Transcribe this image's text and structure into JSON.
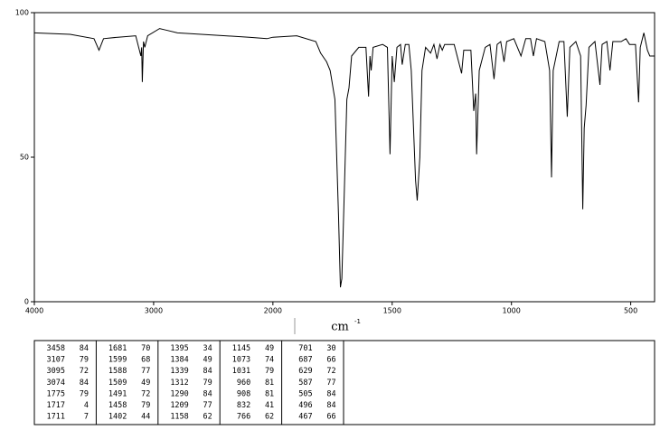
{
  "chart_data": {
    "type": "line",
    "xlabel": "cm",
    "xlabel_sup": "-1",
    "xlim": [
      4000,
      400
    ],
    "xticks": [
      4000,
      3000,
      2000,
      1500,
      1000,
      500
    ],
    "xscale_break": 2000,
    "xscale_break_factor": 2,
    "ylim": [
      0,
      100
    ],
    "yticks": [
      0,
      50,
      100
    ],
    "series": [
      {
        "color": "#000000",
        "x": [
          4000,
          3700,
          3500,
          3458,
          3420,
          3300,
          3150,
          3107,
          3100,
          3095,
          3085,
          3074,
          3050,
          2950,
          2900,
          2800,
          2600,
          2400,
          2200,
          2050,
          2000,
          1900,
          1820,
          1800,
          1775,
          1760,
          1740,
          1725,
          1717,
          1711,
          1700,
          1690,
          1681,
          1670,
          1640,
          1610,
          1599,
          1593,
          1588,
          1580,
          1540,
          1520,
          1509,
          1500,
          1491,
          1480,
          1465,
          1458,
          1445,
          1430,
          1420,
          1402,
          1395,
          1384,
          1375,
          1360,
          1339,
          1325,
          1312,
          1300,
          1290,
          1280,
          1240,
          1209,
          1200,
          1170,
          1158,
          1150,
          1146,
          1135,
          1110,
          1090,
          1073,
          1060,
          1045,
          1031,
          1020,
          990,
          960,
          940,
          920,
          908,
          895,
          860,
          840,
          832,
          825,
          800,
          780,
          766,
          755,
          730,
          710,
          701,
          695,
          687,
          675,
          650,
          629,
          620,
          600,
          587,
          575,
          540,
          520,
          505,
          496,
          480,
          467,
          460,
          445,
          430,
          420,
          400
        ],
        "values": [
          93,
          92.5,
          91,
          87,
          91,
          91.5,
          92,
          85,
          88,
          76,
          90,
          88,
          92,
          94.5,
          94,
          93,
          92.5,
          92,
          91.5,
          91,
          91.5,
          92,
          90,
          86,
          83,
          80,
          70,
          30,
          5,
          8,
          40,
          70,
          74,
          85,
          88,
          88,
          71,
          85,
          80,
          88,
          89,
          88,
          51,
          85,
          76,
          88,
          89,
          82,
          89,
          89,
          80,
          42,
          35,
          50,
          80,
          88,
          86,
          89,
          84,
          89,
          87,
          89,
          89,
          79,
          87,
          87,
          66,
          72,
          51,
          80,
          88,
          89,
          77,
          89,
          90,
          83,
          90,
          91,
          85,
          91,
          91,
          85,
          91,
          90,
          80,
          43,
          80,
          90,
          90,
          64,
          88,
          90,
          85,
          32,
          60,
          68,
          88,
          90,
          75,
          89,
          90,
          80,
          90,
          90,
          91,
          89,
          89,
          89,
          69,
          88,
          93,
          87,
          85,
          85
        ]
      }
    ]
  },
  "table": {
    "rows": [
      [
        3458,
        84,
        1681,
        70,
        1395,
        34,
        1145,
        49,
        701,
        30
      ],
      [
        3107,
        79,
        1599,
        68,
        1384,
        49,
        1073,
        74,
        687,
        66
      ],
      [
        3095,
        72,
        1588,
        77,
        1339,
        84,
        1031,
        79,
        629,
        72
      ],
      [
        3074,
        84,
        1509,
        49,
        1312,
        79,
        960,
        81,
        587,
        77
      ],
      [
        1775,
        79,
        1491,
        72,
        1290,
        84,
        908,
        81,
        505,
        84
      ],
      [
        1717,
        4,
        1458,
        79,
        1209,
        77,
        832,
        41,
        496,
        84
      ],
      [
        1711,
        7,
        1402,
        44,
        1158,
        62,
        766,
        62,
        467,
        66
      ]
    ]
  }
}
